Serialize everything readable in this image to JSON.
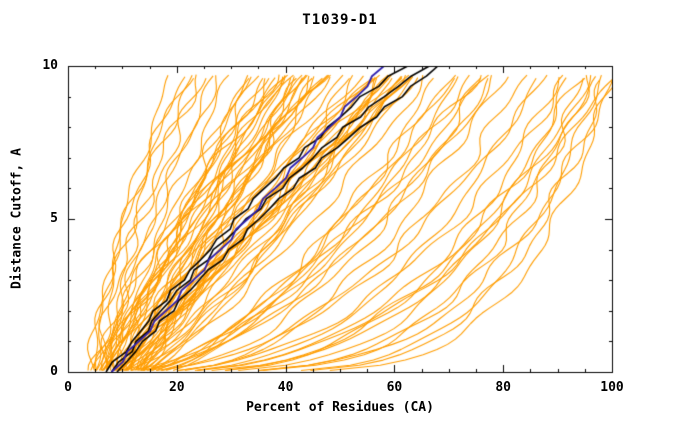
{
  "page": {
    "background": "#ffffff"
  },
  "chart_data": {
    "type": "line",
    "title": "T1039-D1",
    "xlabel": "Percent of Residues (CA)",
    "ylabel": "Distance Cutoff, A",
    "xlim": [
      0,
      100
    ],
    "ylim": [
      0,
      10
    ],
    "xticks": [
      0,
      20,
      40,
      60,
      80,
      100
    ],
    "yticks": [
      0,
      5,
      10
    ],
    "x_minor_step": 5,
    "y_minor_step": 1,
    "grid": false,
    "legend": "none",
    "colors": {
      "background_models": "#ff9d00",
      "reference_models": "#000000",
      "highlight_model": "#2d1fb0",
      "axis": "#000000"
    },
    "series": {
      "y_levels": [
        0,
        1,
        2,
        3,
        4,
        5,
        6,
        7,
        8,
        9,
        10
      ],
      "highlight_model": {
        "color_key": "highlight_model",
        "x": [
          8,
          13,
          18,
          23,
          28,
          33,
          38,
          43,
          48,
          53,
          58
        ]
      },
      "reference_models": [
        {
          "color_key": "reference_models",
          "x": [
            7,
            12,
            16,
            21,
            26,
            31,
            36,
            42,
            48,
            54,
            62
          ]
        },
        {
          "color_key": "reference_models",
          "x": [
            8,
            13,
            17,
            22,
            27,
            33,
            39,
            45,
            51,
            58,
            66
          ]
        },
        {
          "color_key": "reference_models",
          "x": [
            9,
            14,
            19,
            24,
            30,
            35,
            41,
            47,
            54,
            61,
            68
          ]
        }
      ],
      "background_models": {
        "param_format": [
          "x_at_y0",
          "x_at_ytop",
          "shape_exponent",
          "y_top"
        ],
        "curves": [
          [
            5,
            19,
            1.5,
            9.7
          ],
          [
            4,
            21,
            1.4,
            9.65
          ],
          [
            6,
            23,
            1.6,
            9.7
          ],
          [
            5,
            25,
            1.3,
            9.6
          ],
          [
            7,
            24,
            1.5,
            9.72
          ],
          [
            6,
            27,
            1.2,
            9.68
          ],
          [
            5,
            22,
            1.7,
            9.6
          ],
          [
            7,
            28,
            1.35,
            9.7
          ],
          [
            6,
            30,
            1.1,
            9.7
          ],
          [
            8,
            32,
            1.0,
            9.6
          ],
          [
            5,
            34,
            1.2,
            9.65
          ],
          [
            9,
            33,
            0.95,
            9.7
          ],
          [
            7,
            36,
            1.15,
            9.6
          ],
          [
            10,
            35,
            1.3,
            9.68
          ],
          [
            6,
            38,
            1.0,
            9.72
          ],
          [
            11,
            37,
            0.9,
            9.6
          ],
          [
            8,
            40,
            1.25,
            9.7
          ],
          [
            12,
            39,
            1.05,
            9.65
          ],
          [
            7,
            42,
            1.1,
            9.6
          ],
          [
            9,
            41,
            1.4,
            9.7
          ],
          [
            13,
            43,
            0.95,
            9.62
          ],
          [
            6,
            44,
            1.2,
            9.7
          ],
          [
            10,
            45,
            1.0,
            9.66
          ],
          [
            8,
            46,
            1.35,
            9.6
          ],
          [
            12,
            47,
            0.9,
            9.7
          ],
          [
            7,
            48,
            1.1,
            9.64
          ],
          [
            11,
            44,
            1.5,
            9.7
          ],
          [
            9,
            46,
            1.05,
            9.6
          ],
          [
            5,
            40,
            1.3,
            9.7
          ],
          [
            13,
            42,
            0.85,
            9.66
          ],
          [
            8,
            38,
            1.45,
            9.62
          ],
          [
            10,
            48,
            1.15,
            9.7
          ],
          [
            6,
            36,
            0.95,
            9.6
          ],
          [
            12,
            45,
            1.25,
            9.68
          ],
          [
            9,
            43,
            1.0,
            9.6
          ],
          [
            7,
            47,
            1.3,
            9.7
          ],
          [
            11,
            40,
            1.1,
            9.65
          ],
          [
            8,
            44,
            0.9,
            9.7
          ],
          [
            9,
            50,
            1.0,
            9.7
          ],
          [
            11,
            52,
            0.9,
            9.6
          ],
          [
            8,
            54,
            1.1,
            9.68
          ],
          [
            13,
            53,
            0.85,
            9.7
          ],
          [
            10,
            56,
            1.0,
            9.6
          ],
          [
            14,
            55,
            1.2,
            9.7
          ],
          [
            9,
            58,
            0.9,
            9.64
          ],
          [
            12,
            57,
            1.05,
            9.7
          ],
          [
            15,
            59,
            0.8,
            9.6
          ],
          [
            10,
            60,
            1.1,
            9.7
          ],
          [
            8,
            61,
            0.95,
            9.66
          ],
          [
            13,
            62,
            1.15,
            9.6
          ],
          [
            11,
            63,
            0.85,
            9.7
          ],
          [
            9,
            64,
            1.0,
            9.62
          ],
          [
            14,
            60,
            1.25,
            9.7
          ],
          [
            12,
            58,
            0.75,
            9.6
          ],
          [
            10,
            62,
            1.05,
            9.7
          ],
          [
            15,
            64,
            0.9,
            9.65
          ],
          [
            8,
            56,
            1.2,
            9.6
          ],
          [
            11,
            59,
            0.8,
            9.7
          ],
          [
            13,
            61,
            1.1,
            9.66
          ],
          [
            9,
            57,
            0.95,
            9.6
          ],
          [
            12,
            63,
            1.0,
            9.7
          ],
          [
            14,
            62,
            0.85,
            9.64
          ],
          [
            10,
            66,
            0.7,
            9.7
          ],
          [
            12,
            68,
            0.6,
            9.6
          ],
          [
            14,
            70,
            0.65,
            9.7
          ],
          [
            9,
            72,
            0.55,
            9.66
          ],
          [
            16,
            71,
            0.7,
            9.6
          ],
          [
            11,
            74,
            0.6,
            9.7
          ],
          [
            13,
            76,
            0.5,
            9.62
          ],
          [
            15,
            75,
            0.65,
            9.7
          ],
          [
            10,
            78,
            0.55,
            9.6
          ],
          [
            17,
            77,
            0.7,
            9.7
          ],
          [
            12,
            80,
            0.6,
            9.65
          ],
          [
            18,
            79,
            0.5,
            9.7
          ],
          [
            12,
            84,
            0.45,
            9.7
          ],
          [
            15,
            86,
            0.4,
            9.6
          ],
          [
            11,
            88,
            0.5,
            9.7
          ],
          [
            17,
            90,
            0.35,
            9.64
          ],
          [
            13,
            92,
            0.45,
            9.7
          ],
          [
            19,
            94,
            0.4,
            9.6
          ],
          [
            14,
            96,
            0.35,
            9.7
          ],
          [
            16,
            98,
            0.45,
            9.66
          ],
          [
            12,
            100,
            0.4,
            9.7
          ],
          [
            20,
            100,
            0.3,
            9.6
          ],
          [
            18,
            95,
            0.28,
            9.6
          ],
          [
            22,
            98,
            0.25,
            9.7
          ],
          [
            16,
            92,
            0.3,
            9.62
          ],
          [
            24,
            100,
            0.22,
            9.6
          ],
          [
            20,
            96,
            0.3,
            9.7
          ],
          [
            25,
            99,
            0.26,
            9.55
          ]
        ]
      }
    }
  }
}
